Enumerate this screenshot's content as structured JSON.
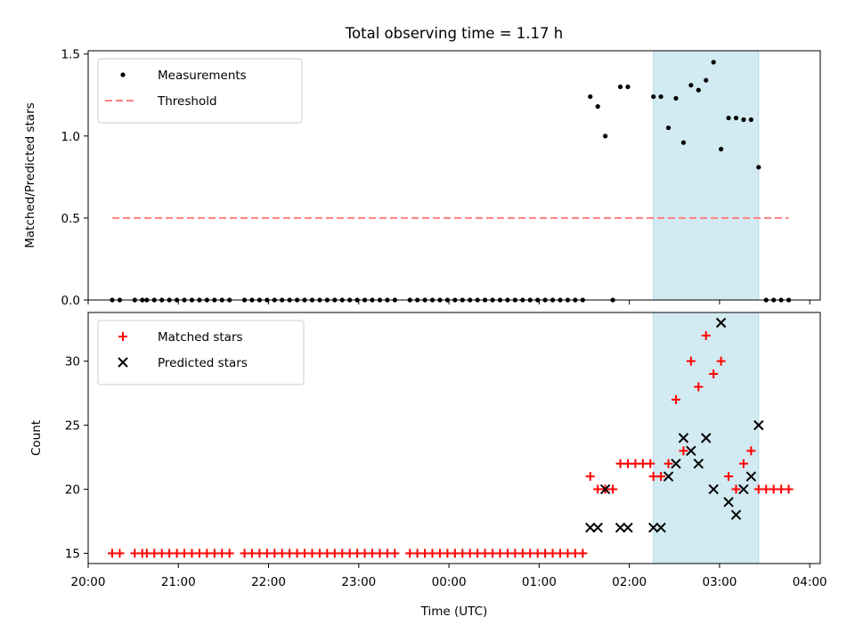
{
  "figure": {
    "title": "Total observing time = 1.17 h",
    "xlabel": "Time (UTC)"
  },
  "chart_data": [
    {
      "type": "scatter",
      "ylabel": "Matched/Predicted stars",
      "xlim": [
        "20:00",
        "04:07"
      ],
      "ylim": [
        0,
        1.52
      ],
      "xticks": [
        "20:00",
        "21:00",
        "22:00",
        "23:00",
        "00:00",
        "01:00",
        "02:00",
        "03:00",
        "04:00"
      ],
      "yticks": [
        "0.0",
        "0.5",
        "1.0",
        "1.5"
      ],
      "highlight_span": {
        "from": "02:16",
        "to": "03:26",
        "color": "#add8e6"
      },
      "legend_position": "top-left",
      "threshold": {
        "name": "Threshold",
        "value": 0.5,
        "x_from": "20:16",
        "x_to": "03:46",
        "color": "#ff7f7f"
      },
      "series": [
        {
          "name": "Measurements",
          "color": "#000000",
          "points": [
            [
              "20:16",
              0
            ],
            [
              "20:21",
              0
            ],
            [
              "20:31",
              0
            ],
            [
              "20:36",
              0
            ],
            [
              "20:39",
              0
            ],
            [
              "20:44",
              0
            ],
            [
              "20:49",
              0
            ],
            [
              "20:54",
              0
            ],
            [
              "20:59",
              0
            ],
            [
              "21:04",
              0
            ],
            [
              "21:09",
              0
            ],
            [
              "21:14",
              0
            ],
            [
              "21:19",
              0
            ],
            [
              "21:24",
              0
            ],
            [
              "21:29",
              0
            ],
            [
              "21:34",
              0
            ],
            [
              "21:44",
              0
            ],
            [
              "21:49",
              0
            ],
            [
              "21:54",
              0
            ],
            [
              "21:59",
              0
            ],
            [
              "22:04",
              0
            ],
            [
              "22:09",
              0
            ],
            [
              "22:14",
              0
            ],
            [
              "22:19",
              0
            ],
            [
              "22:24",
              0
            ],
            [
              "22:29",
              0
            ],
            [
              "22:34",
              0
            ],
            [
              "22:39",
              0
            ],
            [
              "22:44",
              0
            ],
            [
              "22:49",
              0
            ],
            [
              "22:54",
              0
            ],
            [
              "22:59",
              0
            ],
            [
              "23:04",
              0
            ],
            [
              "23:09",
              0
            ],
            [
              "23:14",
              0
            ],
            [
              "23:19",
              0
            ],
            [
              "23:24",
              0
            ],
            [
              "23:34",
              0
            ],
            [
              "23:39",
              0
            ],
            [
              "23:44",
              0
            ],
            [
              "23:49",
              0
            ],
            [
              "23:54",
              0
            ],
            [
              "23:59",
              0
            ],
            [
              "00:04",
              0
            ],
            [
              "00:09",
              0
            ],
            [
              "00:14",
              0
            ],
            [
              "00:19",
              0
            ],
            [
              "00:24",
              0
            ],
            [
              "00:29",
              0
            ],
            [
              "00:34",
              0
            ],
            [
              "00:39",
              0
            ],
            [
              "00:44",
              0
            ],
            [
              "00:49",
              0
            ],
            [
              "00:54",
              0
            ],
            [
              "00:59",
              0
            ],
            [
              "01:04",
              0
            ],
            [
              "01:09",
              0
            ],
            [
              "01:14",
              0
            ],
            [
              "01:19",
              0
            ],
            [
              "01:24",
              0
            ],
            [
              "01:29",
              0
            ],
            [
              "01:34",
              1.24
            ],
            [
              "01:39",
              1.18
            ],
            [
              "01:44",
              1.0
            ],
            [
              "01:49",
              0
            ],
            [
              "01:54",
              1.3
            ],
            [
              "01:59",
              1.3
            ],
            [
              "02:16",
              1.24
            ],
            [
              "02:21",
              1.24
            ],
            [
              "02:26",
              1.05
            ],
            [
              "02:31",
              1.23
            ],
            [
              "02:36",
              0.96
            ],
            [
              "02:41",
              1.31
            ],
            [
              "02:46",
              1.28
            ],
            [
              "02:51",
              1.34
            ],
            [
              "02:56",
              1.45
            ],
            [
              "03:01",
              0.92
            ],
            [
              "03:06",
              1.11
            ],
            [
              "03:11",
              1.11
            ],
            [
              "03:16",
              1.1
            ],
            [
              "03:21",
              1.1
            ],
            [
              "03:26",
              0.81
            ],
            [
              "03:31",
              0
            ],
            [
              "03:36",
              0
            ],
            [
              "03:41",
              0
            ],
            [
              "03:46",
              0
            ]
          ]
        }
      ]
    },
    {
      "type": "scatter",
      "ylabel": "Count",
      "xlim": [
        "20:00",
        "04:07"
      ],
      "ylim": [
        14.2,
        33.8
      ],
      "xticks": [
        "20:00",
        "21:00",
        "22:00",
        "23:00",
        "00:00",
        "01:00",
        "02:00",
        "03:00",
        "04:00"
      ],
      "yticks": [
        "15",
        "20",
        "25",
        "30"
      ],
      "highlight_span": {
        "from": "02:16",
        "to": "03:26",
        "color": "#add8e6"
      },
      "legend_position": "top-left",
      "series": [
        {
          "name": "Matched stars",
          "marker": "plus",
          "color": "#ff0000",
          "points": [
            [
              "20:16",
              15
            ],
            [
              "20:21",
              15
            ],
            [
              "20:31",
              15
            ],
            [
              "20:36",
              15
            ],
            [
              "20:39",
              15
            ],
            [
              "20:44",
              15
            ],
            [
              "20:49",
              15
            ],
            [
              "20:54",
              15
            ],
            [
              "20:59",
              15
            ],
            [
              "21:04",
              15
            ],
            [
              "21:09",
              15
            ],
            [
              "21:14",
              15
            ],
            [
              "21:19",
              15
            ],
            [
              "21:24",
              15
            ],
            [
              "21:29",
              15
            ],
            [
              "21:34",
              15
            ],
            [
              "21:44",
              15
            ],
            [
              "21:49",
              15
            ],
            [
              "21:54",
              15
            ],
            [
              "21:59",
              15
            ],
            [
              "22:04",
              15
            ],
            [
              "22:09",
              15
            ],
            [
              "22:14",
              15
            ],
            [
              "22:19",
              15
            ],
            [
              "22:24",
              15
            ],
            [
              "22:29",
              15
            ],
            [
              "22:34",
              15
            ],
            [
              "22:39",
              15
            ],
            [
              "22:44",
              15
            ],
            [
              "22:49",
              15
            ],
            [
              "22:54",
              15
            ],
            [
              "22:59",
              15
            ],
            [
              "23:04",
              15
            ],
            [
              "23:09",
              15
            ],
            [
              "23:14",
              15
            ],
            [
              "23:19",
              15
            ],
            [
              "23:24",
              15
            ],
            [
              "23:34",
              15
            ],
            [
              "23:39",
              15
            ],
            [
              "23:44",
              15
            ],
            [
              "23:49",
              15
            ],
            [
              "23:54",
              15
            ],
            [
              "23:59",
              15
            ],
            [
              "00:04",
              15
            ],
            [
              "00:09",
              15
            ],
            [
              "00:14",
              15
            ],
            [
              "00:19",
              15
            ],
            [
              "00:24",
              15
            ],
            [
              "00:29",
              15
            ],
            [
              "00:34",
              15
            ],
            [
              "00:39",
              15
            ],
            [
              "00:44",
              15
            ],
            [
              "00:49",
              15
            ],
            [
              "00:54",
              15
            ],
            [
              "00:59",
              15
            ],
            [
              "01:04",
              15
            ],
            [
              "01:09",
              15
            ],
            [
              "01:14",
              15
            ],
            [
              "01:19",
              15
            ],
            [
              "01:24",
              15
            ],
            [
              "01:29",
              15
            ],
            [
              "01:34",
              21
            ],
            [
              "01:39",
              20
            ],
            [
              "01:44",
              20
            ],
            [
              "01:49",
              20
            ],
            [
              "01:54",
              22
            ],
            [
              "01:59",
              22
            ],
            [
              "02:04",
              22
            ],
            [
              "02:09",
              22
            ],
            [
              "02:14",
              22
            ],
            [
              "02:16",
              21
            ],
            [
              "02:21",
              21
            ],
            [
              "02:26",
              22
            ],
            [
              "02:31",
              27
            ],
            [
              "02:36",
              23
            ],
            [
              "02:41",
              30
            ],
            [
              "02:46",
              28
            ],
            [
              "02:51",
              32
            ],
            [
              "02:56",
              29
            ],
            [
              "03:01",
              30
            ],
            [
              "03:06",
              21
            ],
            [
              "03:11",
              20
            ],
            [
              "03:16",
              22
            ],
            [
              "03:21",
              23
            ],
            [
              "03:26",
              20
            ],
            [
              "03:31",
              20
            ],
            [
              "03:36",
              20
            ],
            [
              "03:41",
              20
            ],
            [
              "03:46",
              20
            ]
          ]
        },
        {
          "name": "Predicted stars",
          "marker": "x",
          "color": "#000000",
          "points": [
            [
              "01:34",
              17
            ],
            [
              "01:39",
              17
            ],
            [
              "01:44",
              20
            ],
            [
              "01:54",
              17
            ],
            [
              "01:59",
              17
            ],
            [
              "02:16",
              17
            ],
            [
              "02:21",
              17
            ],
            [
              "02:26",
              21
            ],
            [
              "02:31",
              22
            ],
            [
              "02:36",
              24
            ],
            [
              "02:41",
              23
            ],
            [
              "02:46",
              22
            ],
            [
              "02:51",
              24
            ],
            [
              "02:56",
              20
            ],
            [
              "03:01",
              33
            ],
            [
              "03:06",
              19
            ],
            [
              "03:11",
              18
            ],
            [
              "03:16",
              20
            ],
            [
              "03:21",
              21
            ],
            [
              "03:26",
              25
            ]
          ]
        }
      ]
    }
  ]
}
